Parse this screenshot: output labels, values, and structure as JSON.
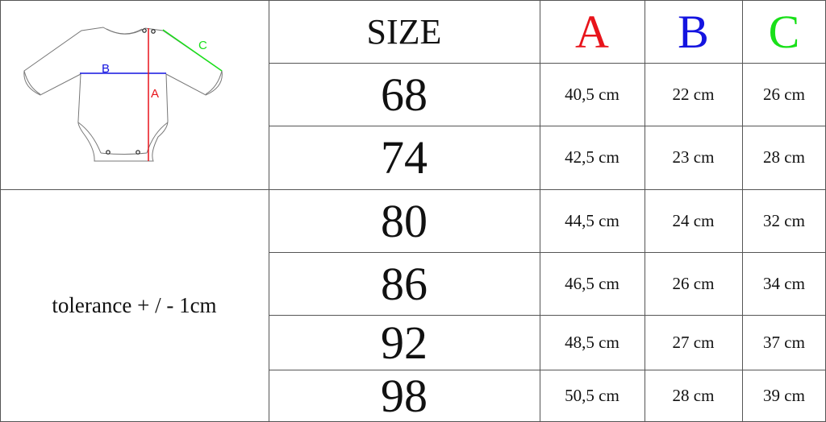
{
  "header": {
    "size_label": "SIZE",
    "col_a": "A",
    "col_b": "B",
    "col_c": "C"
  },
  "colors": {
    "a": "#e8141b",
    "b": "#1414e0",
    "c": "#19e019",
    "lines": "#555555"
  },
  "diagram": {
    "label_a": "A",
    "label_b": "B",
    "label_c": "C"
  },
  "note": "tolerance + / - 1cm",
  "rows": [
    {
      "size": "68",
      "a": "40,5 cm",
      "b": "22 cm",
      "c": "26 cm"
    },
    {
      "size": "74",
      "a": "42,5 cm",
      "b": "23 cm",
      "c": "28 cm"
    },
    {
      "size": "80",
      "a": "44,5 cm",
      "b": "24 cm",
      "c": "32 cm"
    },
    {
      "size": "86",
      "a": "46,5 cm",
      "b": "26 cm",
      "c": "34 cm"
    },
    {
      "size": "92",
      "a": "48,5 cm",
      "b": "27 cm",
      "c": "37 cm"
    },
    {
      "size": "98",
      "a": "50,5 cm",
      "b": "28 cm",
      "c": "39 cm"
    }
  ]
}
